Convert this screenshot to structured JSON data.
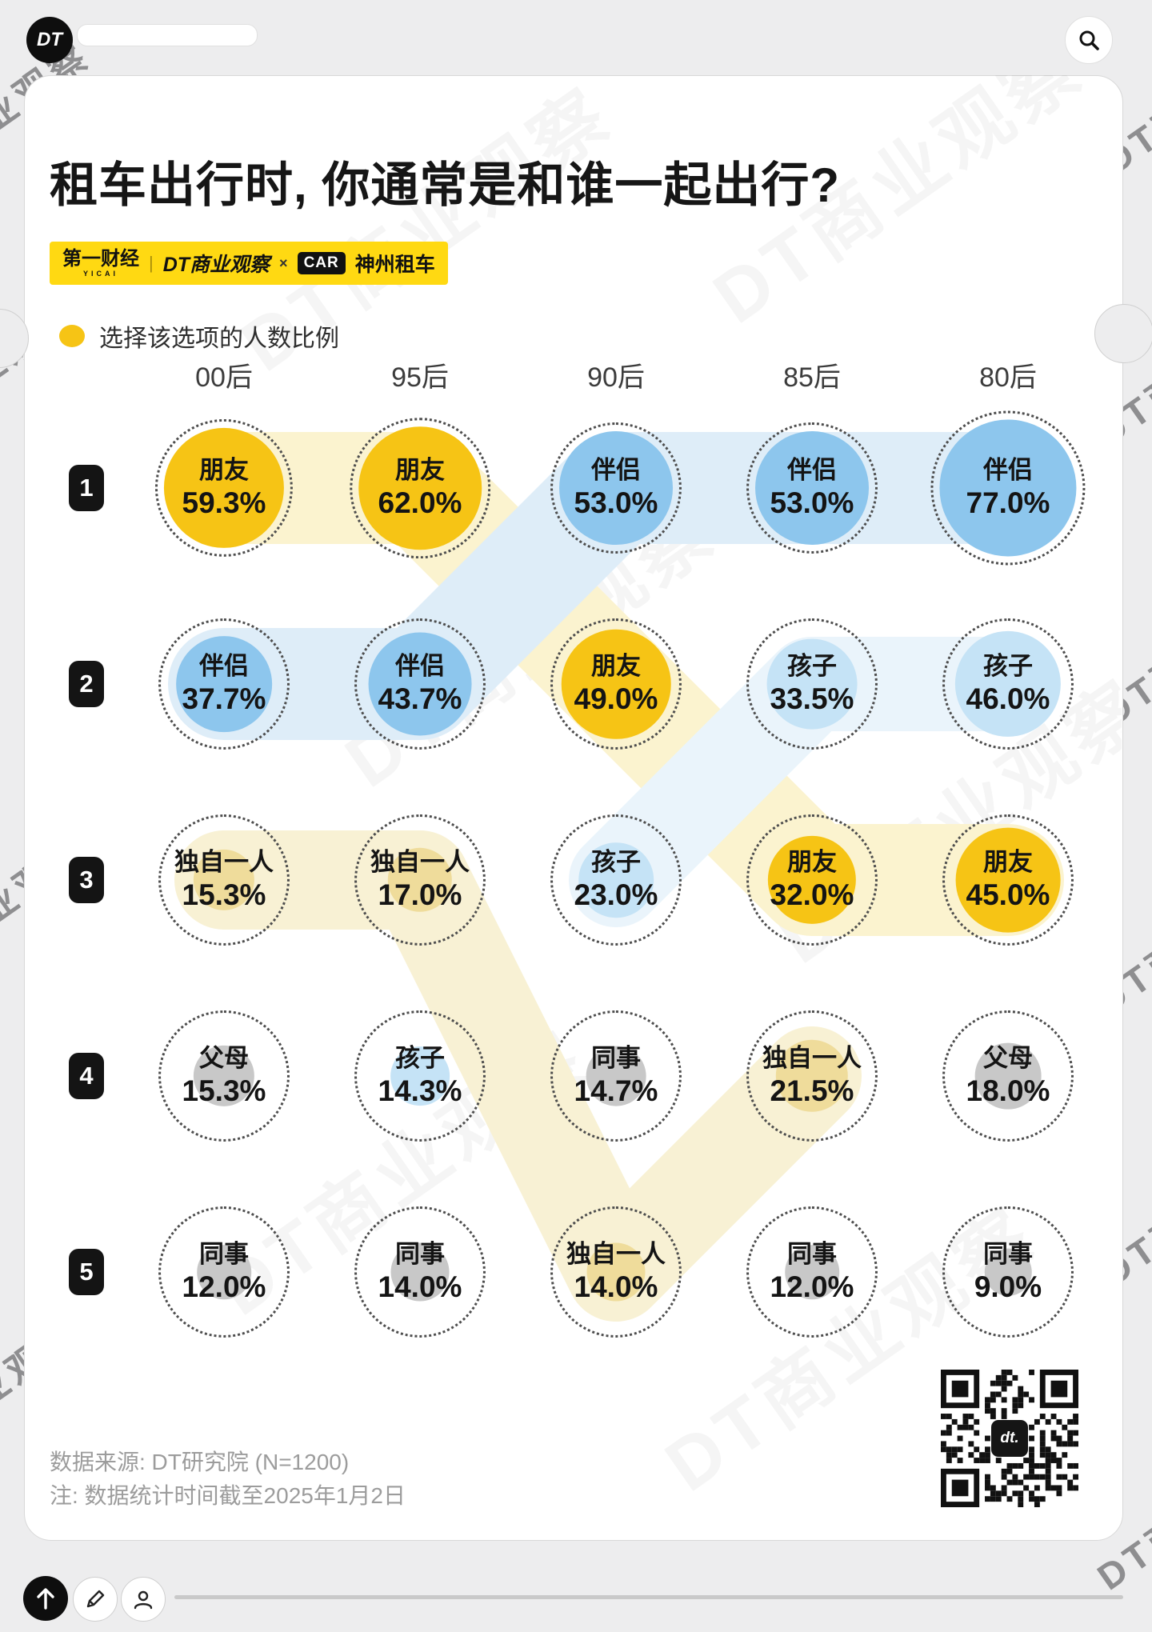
{
  "topbar": {
    "logo_text": "DT",
    "search_icon": "magnifier-icon"
  },
  "header": {
    "title": "租车出行时, 你通常是和谁一起出行?"
  },
  "brand_bar": {
    "yicai": "第一财经",
    "yicai_sub": "YICAI",
    "separator": "|",
    "dt": "DT商业观察",
    "times": "×",
    "car": "CAR",
    "shenzhou": "神州租车"
  },
  "legend": {
    "label": "选择该选项的人数比例"
  },
  "chart_data": {
    "type": "bump-bubble-grid",
    "title": "租车出行时, 你通常是和谁一起出行?",
    "legend": "选择该选项的人数比例 (bubble area = share of respondents)",
    "columns": [
      "00后",
      "95后",
      "90后",
      "85后",
      "80后"
    ],
    "ranks": [
      "1",
      "2",
      "3",
      "4",
      "5"
    ],
    "rows": [
      {
        "rank": "1",
        "cells": [
          {
            "label": "朋友",
            "value": 59.3,
            "value_text": "59.3%",
            "color": "yellow"
          },
          {
            "label": "朋友",
            "value": 62.0,
            "value_text": "62.0%",
            "color": "yellow"
          },
          {
            "label": "伴侣",
            "value": 53.0,
            "value_text": "53.0%",
            "color": "blue"
          },
          {
            "label": "伴侣",
            "value": 53.0,
            "value_text": "53.0%",
            "color": "blue"
          },
          {
            "label": "伴侣",
            "value": 77.0,
            "value_text": "77.0%",
            "color": "blue"
          }
        ]
      },
      {
        "rank": "2",
        "cells": [
          {
            "label": "伴侣",
            "value": 37.7,
            "value_text": "37.7%",
            "color": "blue"
          },
          {
            "label": "伴侣",
            "value": 43.7,
            "value_text": "43.7%",
            "color": "blue"
          },
          {
            "label": "朋友",
            "value": 49.0,
            "value_text": "49.0%",
            "color": "yellow"
          },
          {
            "label": "孩子",
            "value": 33.5,
            "value_text": "33.5%",
            "color": "lightblue"
          },
          {
            "label": "孩子",
            "value": 46.0,
            "value_text": "46.0%",
            "color": "lightblue"
          }
        ]
      },
      {
        "rank": "3",
        "cells": [
          {
            "label": "独自一人",
            "value": 15.3,
            "value_text": "15.3%",
            "color": "paleyellow"
          },
          {
            "label": "独自一人",
            "value": 17.0,
            "value_text": "17.0%",
            "color": "paleyellow"
          },
          {
            "label": "孩子",
            "value": 23.0,
            "value_text": "23.0%",
            "color": "lightblue"
          },
          {
            "label": "朋友",
            "value": 32.0,
            "value_text": "32.0%",
            "color": "yellow"
          },
          {
            "label": "朋友",
            "value": 45.0,
            "value_text": "45.0%",
            "color": "yellow"
          }
        ]
      },
      {
        "rank": "4",
        "cells": [
          {
            "label": "父母",
            "value": 15.3,
            "value_text": "15.3%",
            "color": "gray"
          },
          {
            "label": "孩子",
            "value": 14.3,
            "value_text": "14.3%",
            "color": "lightblue"
          },
          {
            "label": "同事",
            "value": 14.7,
            "value_text": "14.7%",
            "color": "gray"
          },
          {
            "label": "独自一人",
            "value": 21.5,
            "value_text": "21.5%",
            "color": "paleyellow"
          },
          {
            "label": "父母",
            "value": 18.0,
            "value_text": "18.0%",
            "color": "gray"
          }
        ]
      },
      {
        "rank": "5",
        "cells": [
          {
            "label": "同事",
            "value": 12.0,
            "value_text": "12.0%",
            "color": "gray"
          },
          {
            "label": "同事",
            "value": 14.0,
            "value_text": "14.0%",
            "color": "gray"
          },
          {
            "label": "独自一人",
            "value": 14.0,
            "value_text": "14.0%",
            "color": "paleyellow"
          },
          {
            "label": "同事",
            "value": 12.0,
            "value_text": "12.0%",
            "color": "gray"
          },
          {
            "label": "同事",
            "value": 9.0,
            "value_text": "9.0%",
            "color": "gray"
          }
        ]
      }
    ],
    "palette": {
      "yellow": "#F6C415",
      "blue": "#8DC6ED",
      "lightblue": "#C5E3F6",
      "paleyellow": "#EFDC9B",
      "gray": "#C8C8C8",
      "band_yellow": "#FBF3CF",
      "band_blue": "#DEEDF8",
      "band_lightblue": "#EAF4FB",
      "band_paleyellow": "#F8F1D4"
    },
    "flows": [
      {
        "color": "yellow",
        "path": [
          [
            0,
            0
          ],
          [
            0,
            1
          ],
          [
            1,
            2
          ],
          [
            2,
            3
          ],
          [
            2,
            4
          ]
        ]
      },
      {
        "color": "paleyellow",
        "path": [
          [
            2,
            0
          ],
          [
            2,
            1
          ],
          [
            4,
            2
          ],
          [
            3,
            3
          ]
        ]
      },
      {
        "color": "lightblue",
        "path": [
          [
            2,
            2
          ],
          [
            1,
            3
          ],
          [
            1,
            4
          ]
        ]
      },
      {
        "color": "blue",
        "path": [
          [
            1,
            0
          ],
          [
            1,
            1
          ],
          [
            0,
            2
          ],
          [
            0,
            3
          ],
          [
            0,
            4
          ]
        ]
      }
    ]
  },
  "footer": {
    "source_line": "数据来源: DT研究院 (N=1200)",
    "note_line": "注: 数据统计时间截至2025年1月2日"
  },
  "qr": {
    "center_label": "dt."
  },
  "watermark": {
    "text": "DT商业观察"
  }
}
